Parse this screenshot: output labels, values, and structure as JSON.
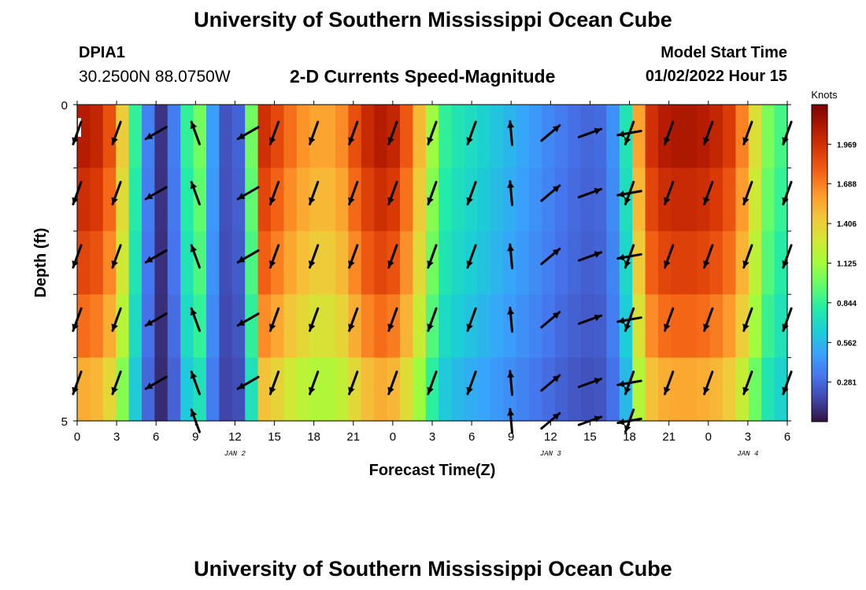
{
  "page": {
    "title": "University of Southern Mississippi Ocean Cube",
    "footer_title": "University of Southern Mississippi Ocean Cube",
    "station_id": "DPIA1",
    "station_coords": "30.2500N  88.0750W",
    "subtitle": "2-D Currents Speed-Magnitude",
    "start_label": "Model Start Time",
    "start_time": "01/02/2022 Hour 15"
  },
  "colors": {
    "colormap": [
      "#30123b",
      "#4145ab",
      "#4675ed",
      "#39a2fc",
      "#1bcfd4",
      "#24eca6",
      "#61fc6c",
      "#a4fc3b",
      "#d1e834",
      "#f3c63a",
      "#fe9b2d",
      "#f36315",
      "#d93806",
      "#b11901",
      "#7a0402"
    ],
    "arrow": "#000000",
    "marker": "#ffffff"
  },
  "chart_data": {
    "type": "heatmap",
    "title": "2-D Currents Speed-Magnitude",
    "xlabel": "Forecast Time(Z)",
    "ylabel": "Depth (ft)",
    "x_tick_labels": [
      "0",
      "3",
      "6",
      "9",
      "12",
      "15",
      "18",
      "21",
      "0",
      "3",
      "6",
      "9",
      "12",
      "15",
      "18",
      "21",
      "0",
      "3",
      "6"
    ],
    "date_labels": [
      {
        "text": "JAN 2",
        "x_hour": 12
      },
      {
        "text": "JAN 3",
        "x_hour": 36
      },
      {
        "text": "JAN 4",
        "x_hour": 51
      }
    ],
    "y_tick_labels": [
      "0",
      "5"
    ],
    "ylim": [
      0,
      5
    ],
    "xlim": [
      0,
      54
    ],
    "colorbar": {
      "label": "Knots",
      "ticks": [
        "0.281",
        "0.562",
        "0.844",
        "1.125",
        "1.406",
        "1.688",
        "1.969"
      ],
      "range": [
        0,
        2.25
      ]
    },
    "layers": 5,
    "hours": 55,
    "speed_profile_knots": [
      [
        0,
        1.95
      ],
      [
        1,
        2.0
      ],
      [
        2,
        1.85
      ],
      [
        3,
        1.65
      ],
      [
        4,
        1.05
      ],
      [
        4.7,
        0.7
      ],
      [
        5.5,
        0.35
      ],
      [
        6.5,
        0.1
      ],
      [
        7.3,
        0.25
      ],
      [
        8,
        0.55
      ],
      [
        8.6,
        0.85
      ],
      [
        9.3,
        1.0
      ],
      [
        9.8,
        0.9
      ],
      [
        10.5,
        0.45
      ],
      [
        11.5,
        0.2
      ],
      [
        12.5,
        0.25
      ],
      [
        13.1,
        0.6
      ],
      [
        13.5,
        0.95
      ],
      [
        14,
        1.9
      ],
      [
        15,
        1.85
      ],
      [
        16,
        1.7
      ],
      [
        18,
        1.5
      ],
      [
        20,
        1.5
      ],
      [
        21,
        1.65
      ],
      [
        22,
        1.85
      ],
      [
        23,
        1.95
      ],
      [
        24,
        2.0
      ],
      [
        25,
        1.85
      ],
      [
        26,
        1.6
      ],
      [
        27,
        1.25
      ],
      [
        28,
        0.85
      ],
      [
        29,
        0.75
      ],
      [
        30,
        0.7
      ],
      [
        32,
        0.6
      ],
      [
        34,
        0.5
      ],
      [
        36,
        0.4
      ],
      [
        38,
        0.3
      ],
      [
        40,
        0.25
      ],
      [
        41,
        0.3
      ],
      [
        42,
        0.5
      ],
      [
        43,
        0.95
      ],
      [
        43.5,
        1.5
      ],
      [
        44,
        1.8
      ],
      [
        45,
        1.95
      ],
      [
        46,
        2.0
      ],
      [
        48,
        2.0
      ],
      [
        50,
        1.9
      ],
      [
        51,
        1.75
      ],
      [
        52,
        1.45
      ],
      [
        53,
        1.1
      ],
      [
        54,
        0.85
      ]
    ],
    "layer_factors": [
      1.05,
      1.0,
      0.95,
      0.88,
      0.78
    ],
    "vectors": [
      {
        "hours": [
          0,
          3,
          15,
          18,
          21,
          24,
          27,
          30,
          45,
          48,
          51,
          54
        ],
        "angle": -20
      },
      {
        "hours": [
          6,
          13
        ],
        "angle": -60
      },
      {
        "hours": [
          42
        ],
        "angle": -80
      },
      {
        "hours": [
          9
        ],
        "angle": 200
      },
      {
        "hours": [
          33
        ],
        "angle": 185
      },
      {
        "hours": [
          36
        ],
        "angle": 130
      },
      {
        "hours": [
          39
        ],
        "angle": 110
      },
      {
        "hours": [
          42
        ],
        "angle": -20
      }
    ]
  }
}
